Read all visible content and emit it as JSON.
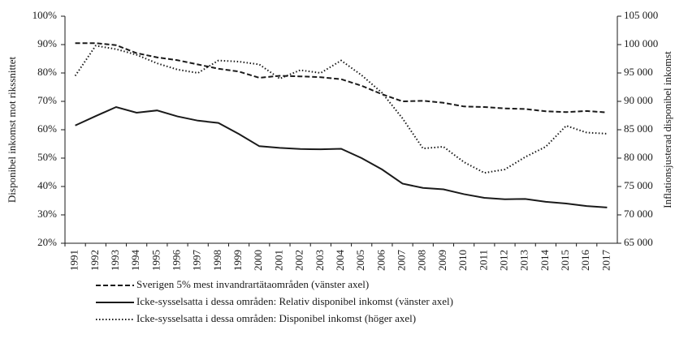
{
  "chart_data": {
    "type": "line",
    "y_label": "Disponibel inkomst mot rikssnittet",
    "y2_label": "Inflationsjusterad disponibel inkomst",
    "categories": [
      "1991",
      "1992",
      "1993",
      "1994",
      "1995",
      "1996",
      "1997",
      "1998",
      "1999",
      "2000",
      "2001",
      "2002",
      "2003",
      "2004",
      "2005",
      "2006",
      "2007",
      "2008",
      "2009",
      "2010",
      "2011",
      "2012",
      "2013",
      "2014",
      "2015",
      "2016",
      "2017"
    ],
    "series": [
      {
        "name": "Sverigen 5% mest invandrartätaområden (vänster axel)",
        "color": "#1a1a1a",
        "style": "dashed",
        "values": [
          90.5,
          90.5,
          89.8,
          87,
          85.5,
          84.5,
          83,
          81.5,
          80.5,
          78.3,
          79,
          78.8,
          78.5,
          77.8,
          75.5,
          72.5,
          70,
          70.2,
          69.5,
          68.2,
          68,
          67.5,
          67.3,
          66.5,
          66.2,
          66.6,
          66.1
        ]
      },
      {
        "name": "Icke-sysselsatta i dessa områden: Relativ disponibel inkomst (vänster axel)",
        "color": "#1a1a1a",
        "style": "solid",
        "values": [
          61.5,
          64.8,
          68,
          66,
          66.8,
          64.7,
          63.2,
          62.4,
          58.5,
          54.2,
          53.6,
          53.2,
          53.1,
          53.3,
          50,
          46,
          41,
          39.5,
          39,
          37.3,
          36,
          35.5,
          35.6,
          34.6,
          34,
          33.1,
          32.6
        ]
      },
      {
        "name": "Icke-sysselsatta i dessa områden: Disponibel inkomst (höger axel)",
        "color": "#1a1a1a",
        "style": "dotted",
        "axis": "y2",
        "values": [
          94500,
          99800,
          99200,
          98200,
          96700,
          95600,
          95000,
          97200,
          97000,
          96500,
          94000,
          95500,
          95000,
          97200,
          94600,
          91500,
          87000,
          81700,
          82000,
          79300,
          77400,
          78000,
          80200,
          82000,
          85700,
          84500,
          84300
        ]
      }
    ],
    "ylim": [
      20,
      100
    ],
    "yticks": [
      {
        "value": 20,
        "label": "20%"
      },
      {
        "value": 30,
        "label": "30%"
      },
      {
        "value": 40,
        "label": "40%"
      },
      {
        "value": 50,
        "label": "50%"
      },
      {
        "value": 60,
        "label": "60%"
      },
      {
        "value": 70,
        "label": "70%"
      },
      {
        "value": 80,
        "label": "80%"
      },
      {
        "value": 90,
        "label": "90%"
      },
      {
        "value": 100,
        "label": "100%"
      }
    ],
    "y2lim": [
      65000,
      105000
    ],
    "y2ticks": [
      {
        "value": 65000,
        "label": "65 000"
      },
      {
        "value": 70000,
        "label": "70 000"
      },
      {
        "value": 75000,
        "label": "75 000"
      },
      {
        "value": 80000,
        "label": "80 000"
      },
      {
        "value": 85000,
        "label": "85 000"
      },
      {
        "value": 90000,
        "label": "90 000"
      },
      {
        "value": 95000,
        "label": "95 000"
      },
      {
        "value": 100000,
        "label": "100 000"
      },
      {
        "value": 105000,
        "label": "105 000"
      }
    ],
    "grid": false
  }
}
